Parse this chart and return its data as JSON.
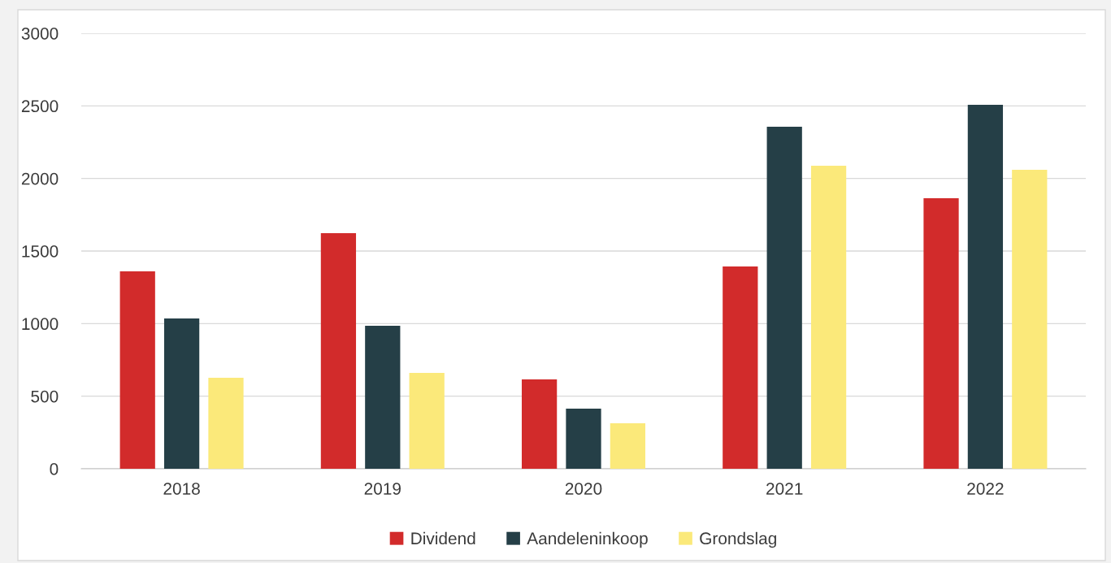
{
  "chart_data": {
    "type": "bar",
    "categories": [
      "2018",
      "2019",
      "2020",
      "2021",
      "2022"
    ],
    "series": [
      {
        "name": "Dividend",
        "color": "#d22b2b",
        "values": [
          1360,
          1623,
          616,
          1394,
          1864
        ]
      },
      {
        "name": "Aandeleninkoop",
        "color": "#253f47",
        "values": [
          1035,
          985,
          414,
          2356,
          2507
        ]
      },
      {
        "name": "Grondslag",
        "color": "#fbe97a",
        "values": [
          627,
          660,
          313,
          2088,
          2060
        ]
      }
    ],
    "ylim": [
      0,
      3000
    ],
    "yticks": [
      0,
      500,
      1000,
      1500,
      2000,
      2500,
      3000
    ],
    "grid": "y",
    "legend": "bottom"
  }
}
